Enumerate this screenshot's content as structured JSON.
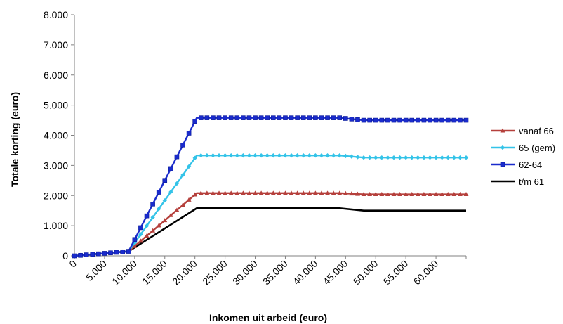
{
  "chart_data": {
    "type": "line",
    "title": "",
    "xlabel": "Inkomen uit arbeid (euro)",
    "ylabel": "Totale korting (euro)",
    "xlim": [
      0,
      65000
    ],
    "ylim": [
      0,
      8000
    ],
    "x_ticks": [
      0,
      5000,
      10000,
      15000,
      20000,
      25000,
      30000,
      35000,
      40000,
      45000,
      50000,
      55000,
      60000
    ],
    "x_tick_labels": [
      "0",
      "5.000",
      "10.000",
      "15.000",
      "20.000",
      "25.000",
      "30.000",
      "35.000",
      "40.000",
      "45.000",
      "50.000",
      "55.000",
      "60.000"
    ],
    "y_ticks": [
      0,
      1000,
      2000,
      3000,
      4000,
      5000,
      6000,
      7000,
      8000
    ],
    "y_tick_labels": [
      "0",
      "1.000",
      "2.000",
      "3.000",
      "4.000",
      "5.000",
      "6.000",
      "7.000",
      "8.000"
    ],
    "grid": false,
    "legend_position": "right",
    "series": [
      {
        "name": "vanaf 66",
        "color": "#b5403c",
        "marker": "triangle",
        "x": [
          0,
          9000,
          20300,
          44000,
          48000,
          65000
        ],
        "y": [
          0,
          150,
          2080,
          2080,
          2040,
          2040
        ]
      },
      {
        "name": "65 (gem)",
        "color": "#33c3e8",
        "marker": "diamond",
        "x": [
          0,
          9000,
          20300,
          44000,
          48000,
          65000
        ],
        "y": [
          0,
          150,
          3330,
          3330,
          3260,
          3260
        ]
      },
      {
        "name": "62-64",
        "color": "#1a2bcc",
        "marker": "square",
        "x": [
          0,
          9000,
          20300,
          44000,
          48000,
          65000
        ],
        "y": [
          0,
          150,
          4580,
          4580,
          4500,
          4500
        ]
      },
      {
        "name": "t/m 61",
        "color": "#000000",
        "marker": "none",
        "x": [
          0,
          9000,
          20300,
          44000,
          48000,
          65000
        ],
        "y": [
          0,
          150,
          1580,
          1580,
          1500,
          1500
        ]
      }
    ]
  }
}
